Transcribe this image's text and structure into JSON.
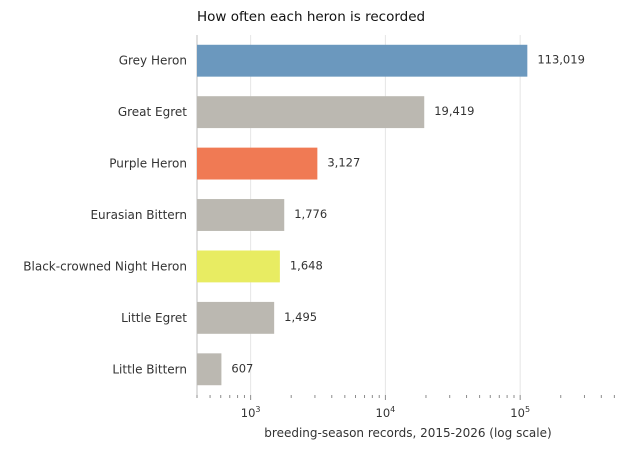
{
  "chart_data": {
    "type": "bar",
    "orientation": "horizontal",
    "title": "How often each heron is recorded",
    "xlabel": "breeding-season records, 2015-2026 (log scale)",
    "ylabel": "",
    "x_scale": "log",
    "xlim": [
      400,
      560000
    ],
    "grid": "vertical",
    "categories": [
      "Grey Heron",
      "Great Egret",
      "Purple Heron",
      "Eurasian Bittern",
      "Black-crowned Night Heron",
      "Little Egret",
      "Little Bittern"
    ],
    "values": [
      113019,
      19419,
      3127,
      1776,
      1648,
      1495,
      607
    ],
    "value_labels": [
      "113,019",
      "19,419",
      "3,127",
      "1,776",
      "1,648",
      "1,495",
      "607"
    ],
    "colors": [
      "#6b98be",
      "#bbb8b1",
      "#f07a54",
      "#bbb8b1",
      "#e8ec62",
      "#bbb8b1",
      "#bbb8b1"
    ],
    "x_ticks": [
      {
        "value": 1000,
        "base": "10",
        "exp": "3"
      },
      {
        "value": 10000,
        "base": "10",
        "exp": "4"
      },
      {
        "value": 100000,
        "base": "10",
        "exp": "5"
      }
    ]
  }
}
